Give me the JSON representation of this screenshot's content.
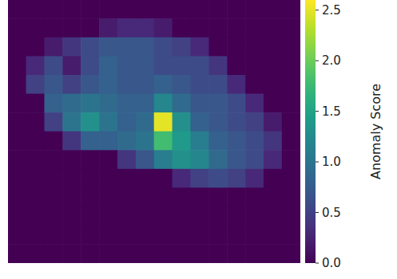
{
  "chart_data": {
    "type": "heatmap",
    "tick_labels": false,
    "colorbar_label": "Anomaly Score",
    "colorbar_range": [
      0,
      2.6
    ],
    "colorbar_ticks": [
      {
        "value": 0,
        "label": "0.0"
      },
      {
        "value": 0.5,
        "label": "0.5"
      },
      {
        "value": 1,
        "label": "1.0"
      },
      {
        "value": 1.5,
        "label": "1.5"
      },
      {
        "value": 2,
        "label": "2.0"
      },
      {
        "value": 2.5,
        "label": "2.5"
      }
    ],
    "cells": [
      [
        0,
        0,
        0,
        0,
        0,
        0,
        0,
        0,
        0,
        0,
        0,
        0,
        0,
        0,
        0,
        0
      ],
      [
        0,
        0,
        0,
        0,
        0,
        0.2,
        0.3,
        0.3,
        0.2,
        0,
        0,
        0,
        0,
        0,
        0,
        0
      ],
      [
        0,
        0,
        0.2,
        0.4,
        0.6,
        0.7,
        0.7,
        0.7,
        0.6,
        0.5,
        0.3,
        0,
        0,
        0,
        0,
        0
      ],
      [
        0,
        0.3,
        0.6,
        0.2,
        0.6,
        0.8,
        0.7,
        0.7,
        0.6,
        0.6,
        0.6,
        0.4,
        0,
        0,
        0,
        0
      ],
      [
        0,
        0.5,
        0.7,
        0.5,
        0.7,
        0.8,
        0.7,
        0.7,
        0.8,
        0.7,
        0.6,
        0.6,
        0.3,
        0,
        0,
        0
      ],
      [
        0,
        0,
        0.8,
        0.9,
        1.0,
        0.9,
        0.8,
        0.8,
        1.2,
        0.9,
        0.7,
        0.7,
        0.6,
        0.3,
        0,
        0
      ],
      [
        0,
        0,
        0.5,
        1.0,
        1.3,
        1.0,
        0.8,
        0.9,
        2.5,
        1.3,
        0.8,
        0.7,
        0.6,
        0.5,
        0.2,
        0
      ],
      [
        0,
        0,
        0,
        0.4,
        0.8,
        0.8,
        0.9,
        1.0,
        1.8,
        1.4,
        1.1,
        0.8,
        0.7,
        0.6,
        0.4,
        0
      ],
      [
        0,
        0,
        0,
        0,
        0,
        0,
        0.4,
        0.7,
        1.1,
        1.3,
        1.2,
        0.9,
        0.7,
        0.6,
        0.3,
        0
      ],
      [
        0,
        0,
        0,
        0,
        0,
        0,
        0,
        0,
        0,
        0.3,
        0.5,
        0.6,
        0.5,
        0.3,
        0,
        0
      ],
      [
        0,
        0,
        0,
        0,
        0,
        0,
        0,
        0,
        0,
        0,
        0,
        0,
        0,
        0,
        0,
        0
      ],
      [
        0,
        0,
        0,
        0,
        0,
        0,
        0,
        0,
        0,
        0,
        0,
        0,
        0,
        0,
        0,
        0
      ],
      [
        0,
        0,
        0,
        0,
        0,
        0,
        0,
        0,
        0,
        0,
        0,
        0,
        0,
        0,
        0,
        0
      ],
      [
        0,
        0,
        0,
        0,
        0,
        0,
        0,
        0,
        0,
        0,
        0,
        0,
        0,
        0,
        0,
        0
      ]
    ]
  }
}
